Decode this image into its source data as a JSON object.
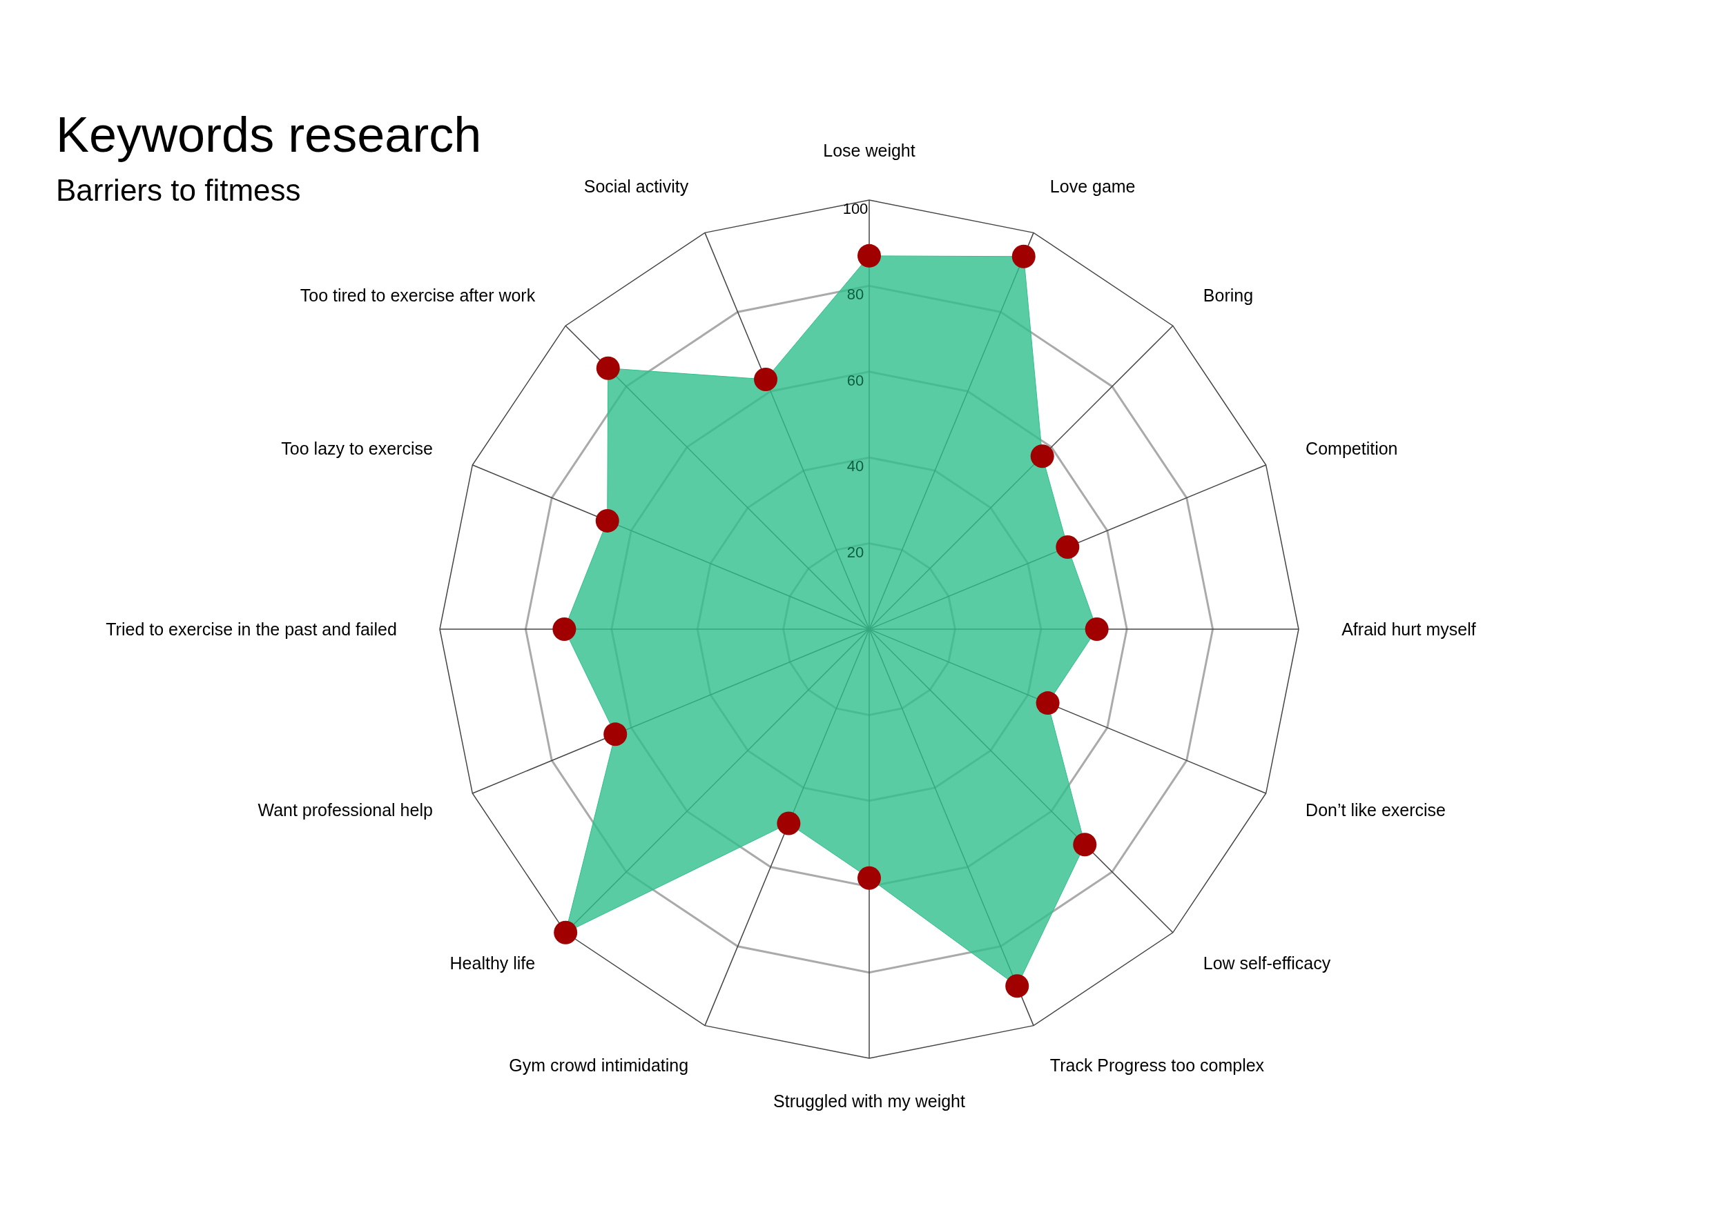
{
  "chart_data": {
    "type": "radar",
    "title": "Keywords research",
    "subtitle": "Barriers to fitmess",
    "categories": [
      "Lose weight",
      "Love game",
      "Boring",
      "Competition",
      "Afraid hurt myself",
      "Don’t like exercise",
      "Low self-efficacy",
      "Track Progress too complex",
      "Struggled with my weight",
      "Gym crowd intimidating",
      "Healthy life",
      "Want professional help",
      "Tried to exercise in the past and failed",
      "Too lazy to exercise",
      "Too tired to exercise after work",
      "Social activity"
    ],
    "series": [
      {
        "color": "#2fbf8c",
        "colors": [
          "#a00000",
          "#a00000",
          "#a00000",
          "#a00000",
          "#a00000",
          "#a00000",
          "#a00000",
          "#a00000",
          "#a00000",
          "#a00000",
          "#a00000",
          "#a00000",
          "#a00000",
          "#a00000",
          "#a00000",
          "#a00000"
        ],
        "values": [
          87,
          94,
          57,
          50,
          53,
          45,
          71,
          90,
          58,
          49,
          100,
          64,
          71,
          66,
          86,
          63
        ]
      }
    ],
    "ylim": [
      0,
      100
    ],
    "yticks": [
      20,
      40,
      60,
      80,
      100
    ],
    "grid": true,
    "marker": "circle"
  }
}
